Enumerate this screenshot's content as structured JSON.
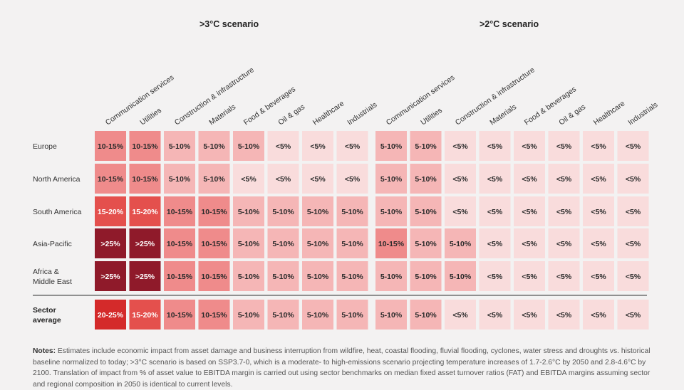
{
  "chart_data": {
    "type": "heatmap",
    "scenarios": [
      {
        "title": ">3°C scenario",
        "sectors": [
          "Communication services",
          "Utilities",
          "Construction & infrastructure",
          "Materials",
          "Food & beverages",
          "Oil & gas",
          "Healthcare",
          "Industrials"
        ],
        "rows": [
          {
            "region": "Europe",
            "values": [
              "10-15%",
              "10-15%",
              "5-10%",
              "5-10%",
              "5-10%",
              "<5%",
              "<5%",
              "<5%"
            ]
          },
          {
            "region": "North America",
            "values": [
              "10-15%",
              "10-15%",
              "5-10%",
              "5-10%",
              "<5%",
              "<5%",
              "<5%",
              "<5%"
            ]
          },
          {
            "region": "South America",
            "values": [
              "15-20%",
              "15-20%",
              "10-15%",
              "10-15%",
              "5-10%",
              "5-10%",
              "5-10%",
              "5-10%"
            ]
          },
          {
            "region": "Asia-Pacific",
            "values": [
              ">25%",
              ">25%",
              "10-15%",
              "10-15%",
              "5-10%",
              "5-10%",
              "5-10%",
              "5-10%"
            ]
          },
          {
            "region": "Africa &\nMiddle East",
            "values": [
              ">25%",
              ">25%",
              "10-15%",
              "10-15%",
              "5-10%",
              "5-10%",
              "5-10%",
              "5-10%"
            ]
          }
        ],
        "average": {
          "region": "Sector\naverage",
          "values": [
            "20-25%",
            "15-20%",
            "10-15%",
            "10-15%",
            "5-10%",
            "5-10%",
            "5-10%",
            "5-10%"
          ]
        }
      },
      {
        "title": ">2°C scenario",
        "sectors": [
          "Communication services",
          "Utilities",
          "Construction & infrastructure",
          "Materials",
          "Food & beverages",
          "Oil & gas",
          "Healthcare",
          "Industrials"
        ],
        "rows": [
          {
            "region": "Europe",
            "values": [
              "5-10%",
              "5-10%",
              "<5%",
              "<5%",
              "<5%",
              "<5%",
              "<5%",
              "<5%"
            ]
          },
          {
            "region": "North America",
            "values": [
              "5-10%",
              "5-10%",
              "<5%",
              "<5%",
              "<5%",
              "<5%",
              "<5%",
              "<5%"
            ]
          },
          {
            "region": "South America",
            "values": [
              "5-10%",
              "5-10%",
              "<5%",
              "<5%",
              "<5%",
              "<5%",
              "<5%",
              "<5%"
            ]
          },
          {
            "region": "Asia-Pacific",
            "values": [
              "10-15%",
              "5-10%",
              "5-10%",
              "<5%",
              "<5%",
              "<5%",
              "<5%",
              "<5%"
            ]
          },
          {
            "region": "Africa &\nMiddle East",
            "values": [
              "5-10%",
              "5-10%",
              "5-10%",
              "<5%",
              "<5%",
              "<5%",
              "<5%",
              "<5%"
            ]
          }
        ],
        "average": {
          "region": "Sector\naverage",
          "values": [
            "5-10%",
            "5-10%",
            "<5%",
            "<5%",
            "<5%",
            "<5%",
            "<5%",
            "<5%"
          ]
        }
      }
    ],
    "color_scale": {
      "<5%": "#f9dcdc",
      "5-10%": "#f5b6b6",
      "10-15%": "#ef8b8b",
      "15-20%": "#e4504d",
      "20-25%": "#d42a2a",
      ">25%": "#8f1a2a"
    },
    "dark_text_color": "#2b2b2b",
    "light_text_color": "#ffffff"
  },
  "notes": {
    "label": "Notes:",
    "text": "Estimates include economic impact from asset damage and business interruption from wildfire, heat, coastal flooding, fluvial flooding, cyclones, water stress and droughts vs. historical baseline normalized to today; >3°C scenario is based on SSP3.7-0, which is a moderate- to high-emissions scenario projecting temperature increases of 1.7-2.6°C by 2050 and 2.8-4.6°C by 2100. Translation of impact from % of asset value to EBITDA margin is carried out using sector benchmarks on median fixed asset turnover ratios (FAT) and EBITDA margins assuming sector and regional composition in 2050 is identical to current levels."
  }
}
